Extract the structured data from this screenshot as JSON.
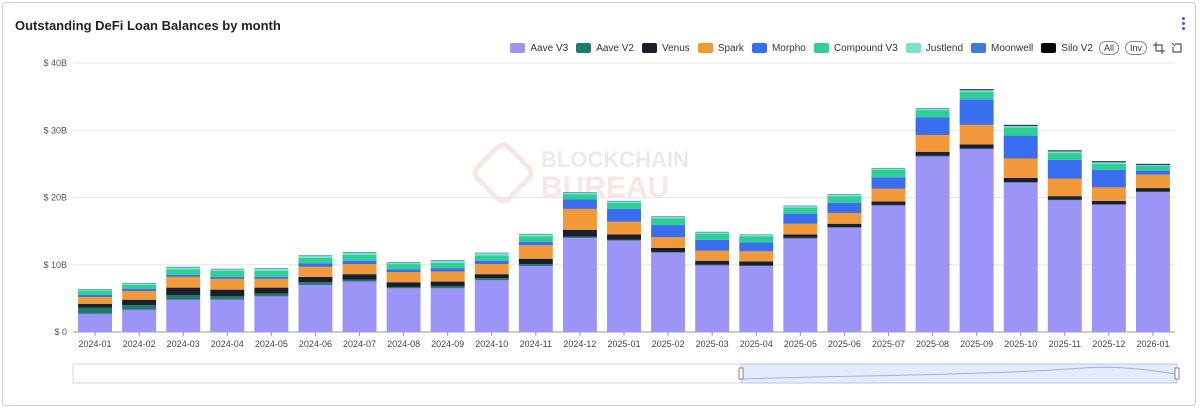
{
  "title": "Outstanding DeFi Loan Balances by month",
  "legend_buttons": {
    "all": "All",
    "inv": "Inv"
  },
  "watermark": {
    "line1": "BLOCKCHAIN",
    "line2": "BUREAU"
  },
  "icons": {
    "menu": "kebab-menu-icon",
    "zoom": "crop-zoom-icon",
    "reset": "zoom-reset-icon"
  },
  "chart_data": {
    "type": "bar",
    "stacked": true,
    "title": "Outstanding DeFi Loan Balances by month",
    "xlabel": "",
    "ylabel": "",
    "ylim": [
      0,
      40
    ],
    "yticks": [
      0,
      10,
      20,
      30,
      40
    ],
    "ytick_labels": [
      "$ 0",
      "$ 10B",
      "$ 20B",
      "$ 30B",
      "$ 40B"
    ],
    "grid": true,
    "legend_position": "top-right",
    "categories": [
      "2024-01",
      "2024-02",
      "2024-03",
      "2024-04",
      "2024-05",
      "2024-06",
      "2024-07",
      "2024-08",
      "2024-09",
      "2024-10",
      "2024-11",
      "2024-12",
      "2025-01",
      "2025-02",
      "2025-03",
      "2025-04",
      "2025-05",
      "2025-06",
      "2025-07",
      "2025-08",
      "2025-09",
      "2025-10",
      "2025-11",
      "2025-12",
      "2026-01"
    ],
    "series": [
      {
        "name": "Aave V3",
        "color": "#9d94f7",
        "values": [
          2.7,
          3.3,
          4.8,
          4.8,
          5.3,
          7.0,
          7.5,
          6.5,
          6.5,
          7.7,
          9.8,
          14.0,
          13.6,
          11.8,
          9.9,
          9.8,
          13.9,
          15.5,
          18.8,
          26.1,
          27.2,
          22.2,
          19.6,
          18.9,
          20.8
        ]
      },
      {
        "name": "Aave V2",
        "color": "#1f7a70",
        "values": [
          0.9,
          0.7,
          0.7,
          0.5,
          0.4,
          0.4,
          0.3,
          0.2,
          0.3,
          0.3,
          0.3,
          0.2,
          0.1,
          0.1,
          0.1,
          0.1,
          0.1,
          0.1,
          0.1,
          0.1,
          0.1,
          0.1,
          0.1,
          0.1,
          0.1
        ]
      },
      {
        "name": "Venus",
        "color": "#1c1f2b",
        "values": [
          0.6,
          0.8,
          1.1,
          1.0,
          0.9,
          0.8,
          0.8,
          0.7,
          0.7,
          0.6,
          0.8,
          1.0,
          0.8,
          0.6,
          0.6,
          0.6,
          0.5,
          0.5,
          0.5,
          0.6,
          0.6,
          0.6,
          0.5,
          0.5,
          0.5
        ]
      },
      {
        "name": "Spark",
        "color": "#f29a3a",
        "values": [
          1.0,
          1.3,
          1.6,
          1.6,
          1.3,
          1.5,
          1.5,
          1.5,
          1.5,
          1.5,
          2.0,
          3.1,
          1.9,
          1.6,
          1.5,
          1.5,
          1.6,
          1.6,
          1.9,
          2.5,
          2.9,
          2.9,
          2.6,
          2.0,
          2.0
        ]
      },
      {
        "name": "Morpho",
        "color": "#3a6ef0",
        "values": [
          0.3,
          0.3,
          0.3,
          0.3,
          0.3,
          0.5,
          0.5,
          0.4,
          0.5,
          0.5,
          0.5,
          1.4,
          1.9,
          1.8,
          1.6,
          1.3,
          1.5,
          1.5,
          1.7,
          2.6,
          3.8,
          3.4,
          2.8,
          2.6,
          0.6
        ]
      },
      {
        "name": "Compound V3",
        "color": "#2ecf93",
        "values": [
          0.6,
          0.6,
          0.8,
          0.9,
          0.9,
          0.8,
          0.9,
          0.8,
          0.8,
          0.8,
          0.8,
          0.8,
          0.9,
          1.0,
          0.9,
          0.9,
          0.9,
          1.0,
          1.1,
          1.1,
          1.1,
          1.2,
          1.0,
          0.9,
          0.7
        ]
      },
      {
        "name": "Justlend",
        "color": "#7ee0cc",
        "values": [
          0.2,
          0.2,
          0.3,
          0.2,
          0.3,
          0.3,
          0.3,
          0.2,
          0.3,
          0.3,
          0.3,
          0.2,
          0.2,
          0.2,
          0.2,
          0.2,
          0.2,
          0.2,
          0.2,
          0.2,
          0.2,
          0.2,
          0.2,
          0.2,
          0.1
        ]
      },
      {
        "name": "Moonwell",
        "color": "#3f78d8",
        "values": [
          0.1,
          0.1,
          0.1,
          0.1,
          0.1,
          0.1,
          0.1,
          0.1,
          0.1,
          0.1,
          0.1,
          0.1,
          0.1,
          0.1,
          0.1,
          0.1,
          0.1,
          0.1,
          0.1,
          0.1,
          0.1,
          0.1,
          0.1,
          0.1,
          0.1
        ]
      },
      {
        "name": "Silo V2",
        "color": "#000000",
        "values": [
          0.0,
          0.0,
          0.0,
          0.0,
          0.0,
          0.0,
          0.0,
          0.0,
          0.0,
          0.0,
          0.0,
          0.0,
          0.0,
          0.0,
          0.0,
          0.0,
          0.0,
          0.0,
          0.0,
          0.0,
          0.1,
          0.1,
          0.1,
          0.1,
          0.1
        ]
      }
    ]
  }
}
